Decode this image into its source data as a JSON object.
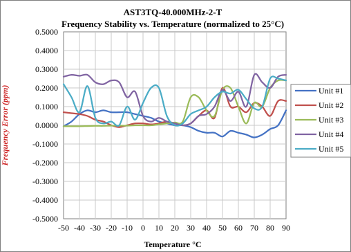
{
  "chart_data": {
    "type": "line",
    "title": "AST3TQ-40.000MHz-2-T",
    "subtitle": "Frequency Stability vs. Temperature (normalized to 25°C)",
    "xlabel": "Temperature °C",
    "ylabel": "Frequency Error (ppm)",
    "xlim": [
      -50,
      90
    ],
    "ylim": [
      -0.5,
      0.5
    ],
    "xticks": [
      "-50",
      "-40",
      "-30",
      "-20",
      "-10",
      "0",
      "10",
      "20",
      "30",
      "40",
      "50",
      "60",
      "70",
      "80",
      "90"
    ],
    "yticks": [
      "0.5000",
      "0.4000",
      "0.3000",
      "0.2000",
      "0.1000",
      "0.0000",
      "-0.1000",
      "-0.2000",
      "-0.3000",
      "-0.4000",
      "-0.5000"
    ],
    "grid": true,
    "legend_position": "right",
    "colors": {
      "ylabel": "#cc2222",
      "grid": "#c8c8c8",
      "frame": "#7f7f7f"
    },
    "series": [
      {
        "name": "Unit #1",
        "color": "#4472c4",
        "x": [
          -50,
          -45,
          -40,
          -35,
          -30,
          -25,
          -20,
          -15,
          -10,
          -5,
          0,
          5,
          10,
          15,
          20,
          25,
          30,
          35,
          40,
          45,
          50,
          55,
          60,
          65,
          70,
          75,
          80,
          85,
          90
        ],
        "y": [
          -0.005,
          0.02,
          0.06,
          0.08,
          0.07,
          0.08,
          0.07,
          0.07,
          0.07,
          0.06,
          0.05,
          0.04,
          0.02,
          0.01,
          0.0,
          0.0,
          -0.01,
          -0.03,
          -0.04,
          -0.04,
          -0.06,
          -0.03,
          -0.04,
          -0.05,
          -0.065,
          -0.05,
          -0.02,
          0.0,
          0.08
        ]
      },
      {
        "name": "Unit #2",
        "color": "#c0504d",
        "x": [
          -50,
          -45,
          -40,
          -35,
          -30,
          -25,
          -20,
          -15,
          -10,
          -5,
          0,
          5,
          10,
          15,
          20,
          25,
          30,
          35,
          40,
          45,
          50,
          55,
          60,
          65,
          70,
          75,
          80,
          85,
          90
        ],
        "y": [
          0.07,
          0.065,
          0.06,
          0.05,
          0.03,
          0.02,
          0.0,
          -0.01,
          0.0,
          0.01,
          0.01,
          0.005,
          0.01,
          0.02,
          0.01,
          0.0,
          0.01,
          0.05,
          0.08,
          0.04,
          0.2,
          0.1,
          0.1,
          0.07,
          0.12,
          0.1,
          0.05,
          0.13,
          0.13
        ]
      },
      {
        "name": "Unit #3",
        "color": "#9bbb59",
        "x": [
          -50,
          -45,
          -40,
          -35,
          -30,
          -25,
          -20,
          -15,
          -10,
          -5,
          0,
          5,
          10,
          15,
          20,
          25,
          30,
          35,
          40,
          45,
          50,
          55,
          60,
          65,
          70,
          75,
          80,
          85,
          90
        ],
        "y": [
          -0.005,
          -0.005,
          -0.005,
          -0.004,
          -0.003,
          -0.003,
          -0.002,
          -0.002,
          -0.002,
          0.0,
          0.0,
          0.0,
          0.005,
          0.01,
          0.015,
          0.02,
          0.15,
          0.15,
          0.08,
          0.05,
          0.19,
          0.2,
          0.1,
          0.01,
          0.12,
          0.1,
          0.2,
          0.24,
          0.24
        ]
      },
      {
        "name": "Unit #4",
        "color": "#8064a2",
        "x": [
          -50,
          -45,
          -40,
          -35,
          -30,
          -25,
          -20,
          -15,
          -10,
          -5,
          0,
          5,
          10,
          15,
          20,
          25,
          30,
          35,
          40,
          45,
          50,
          55,
          60,
          65,
          70,
          75,
          80,
          85,
          90
        ],
        "y": [
          0.26,
          0.27,
          0.265,
          0.27,
          0.23,
          0.22,
          0.24,
          0.23,
          0.15,
          0.18,
          0.05,
          0.02,
          0.04,
          0.02,
          0.01,
          0.0,
          0.01,
          0.05,
          0.06,
          0.1,
          0.19,
          0.13,
          0.18,
          0.1,
          0.27,
          0.23,
          0.2,
          0.26,
          0.27
        ]
      },
      {
        "name": "Unit #5",
        "color": "#4bacc6",
        "x": [
          -50,
          -45,
          -40,
          -35,
          -30,
          -25,
          -20,
          -15,
          -10,
          -5,
          0,
          5,
          10,
          15,
          20,
          25,
          30,
          35,
          40,
          45,
          50,
          55,
          60,
          65,
          70,
          75,
          80,
          85,
          90
        ],
        "y": [
          0.22,
          0.15,
          0.07,
          0.21,
          0.04,
          0.01,
          0.02,
          0.0,
          0.1,
          0.03,
          0.12,
          0.2,
          0.2,
          0.05,
          0.0,
          0.01,
          0.06,
          0.08,
          0.1,
          0.15,
          0.18,
          0.17,
          0.19,
          0.14,
          0.09,
          0.1,
          0.25,
          0.25,
          0.24
        ]
      }
    ]
  }
}
